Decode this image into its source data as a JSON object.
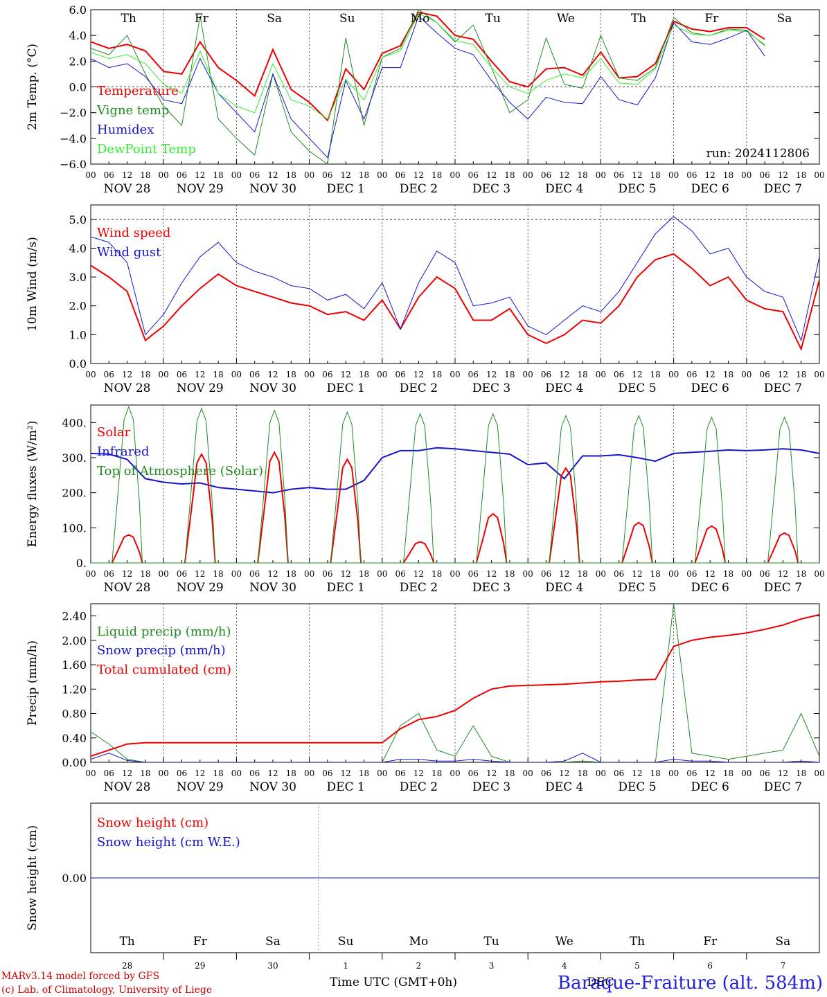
{
  "chart_data": [
    {
      "type": "line",
      "ylabel": "2m Temp. (°C)",
      "ylim": [
        -6,
        6
      ],
      "yticks": [
        "6.0",
        "4.0",
        "2.0",
        "0.0",
        "−2.0",
        "−4.0",
        "−6.0"
      ],
      "dashed_ref": 0,
      "annotation": "run: 2024112806",
      "x": [
        0,
        6,
        12,
        18,
        24,
        30,
        36,
        42,
        48,
        54,
        60,
        66,
        72,
        78,
        84,
        90,
        96,
        102,
        108,
        114,
        120,
        126,
        132,
        138,
        144,
        150,
        156,
        162,
        168,
        174,
        180,
        186,
        192,
        198,
        204,
        210,
        216,
        222,
        228,
        234,
        240
      ],
      "series": [
        {
          "name": "Temperature",
          "color": "#ee0000",
          "width": 2,
          "values": [
            3.5,
            3.0,
            3.3,
            2.8,
            1.2,
            1.0,
            3.5,
            1.5,
            0.5,
            -0.7,
            2.9,
            -0.2,
            -1.2,
            -2.6,
            1.4,
            -0.2,
            2.6,
            3.2,
            5.8,
            5.5,
            4.0,
            3.7,
            2.0,
            0.4,
            0.0,
            1.4,
            1.5,
            0.9,
            2.7,
            0.7,
            0.8,
            1.8,
            5.1,
            4.5,
            4.3,
            4.6,
            4.6,
            3.7,
            null,
            null,
            null
          ]
        },
        {
          "name": "Vigne temp",
          "color": "#228b22",
          "width": 1,
          "values": [
            3.0,
            2.5,
            4.0,
            1.0,
            -1.5,
            -3.0,
            5.5,
            -2.5,
            -4.0,
            -5.3,
            1.0,
            -3.5,
            -5.0,
            -6.0,
            3.8,
            -3.0,
            2.3,
            3.0,
            6.0,
            5.0,
            3.5,
            4.8,
            1.5,
            -2.0,
            -1.0,
            3.8,
            0.2,
            -0.1,
            4.0,
            0.7,
            0.5,
            1.5,
            5.4,
            4.2,
            4.0,
            4.5,
            4.4,
            3.2,
            null,
            null,
            null
          ]
        },
        {
          "name": "Humidex",
          "color": "#1515cc",
          "width": 1,
          "values": [
            2.2,
            1.5,
            1.8,
            0.8,
            -1.0,
            -1.3,
            2.2,
            -0.5,
            -2.0,
            -3.5,
            1.0,
            -2.5,
            -4.0,
            -5.5,
            0.5,
            -2.5,
            1.5,
            1.5,
            5.5,
            4.2,
            3.0,
            2.5,
            0.5,
            -1.2,
            -2.5,
            -0.8,
            -1.2,
            -1.3,
            0.8,
            -1.0,
            -1.4,
            0.7,
            5.0,
            3.5,
            3.3,
            3.8,
            4.4,
            2.4,
            null,
            null,
            null
          ]
        },
        {
          "name": "DewPoint Temp",
          "color": "#33ee33",
          "width": 1,
          "values": [
            2.7,
            2.2,
            2.5,
            1.8,
            0.2,
            -0.5,
            2.8,
            -0.5,
            -1.5,
            -2.0,
            1.8,
            -1.0,
            -1.5,
            -2.5,
            0.6,
            -1.0,
            2.3,
            2.8,
            5.7,
            5.0,
            3.6,
            3.3,
            1.5,
            0.0,
            -0.5,
            0.5,
            1.0,
            0.7,
            2.2,
            0.3,
            0.2,
            1.4,
            4.8,
            4.1,
            4.0,
            4.4,
            4.3,
            3.3,
            null,
            null,
            null
          ]
        }
      ]
    },
    {
      "type": "line",
      "ylabel": "10m Wind (m/s)",
      "ylim": [
        0,
        5.5
      ],
      "yticks": [
        "0.0",
        "1.0",
        "2.0",
        "3.0",
        "4.0",
        "5.0"
      ],
      "dashed_ref": 5.0,
      "x": [
        0,
        6,
        12,
        18,
        24,
        30,
        36,
        42,
        48,
        54,
        60,
        66,
        72,
        78,
        84,
        90,
        96,
        102,
        108,
        114,
        120,
        126,
        132,
        138,
        144,
        150,
        156,
        162,
        168,
        174,
        180,
        186,
        192,
        198,
        204,
        210,
        216,
        222,
        228,
        234,
        240
      ],
      "series": [
        {
          "name": "Wind speed",
          "color": "#ee0000",
          "width": 2,
          "values": [
            3.4,
            3.0,
            2.5,
            0.8,
            1.3,
            2.0,
            2.6,
            3.1,
            2.7,
            2.5,
            2.3,
            2.1,
            2.0,
            1.7,
            1.8,
            1.5,
            2.2,
            1.2,
            2.3,
            3.0,
            2.6,
            1.5,
            1.5,
            1.9,
            1.0,
            0.7,
            1.0,
            1.5,
            1.4,
            2.0,
            3.0,
            3.6,
            3.8,
            3.3,
            2.7,
            3.0,
            2.2,
            1.9,
            1.8,
            0.5,
            2.9
          ]
        },
        {
          "name": "Wind gust",
          "color": "#1515cc",
          "width": 1,
          "values": [
            4.4,
            4.2,
            3.5,
            1.0,
            1.7,
            2.8,
            3.7,
            4.2,
            3.5,
            3.2,
            3.0,
            2.7,
            2.6,
            2.2,
            2.4,
            1.9,
            2.8,
            1.2,
            2.8,
            3.9,
            3.5,
            2.0,
            2.1,
            2.3,
            1.3,
            1.0,
            1.5,
            2.0,
            1.8,
            2.5,
            3.5,
            4.5,
            5.1,
            4.6,
            3.8,
            4.0,
            3.0,
            2.5,
            2.3,
            0.8,
            3.7
          ]
        }
      ]
    },
    {
      "type": "line",
      "ylabel": "Energy fluxes (W/m²)",
      "ylim": [
        0,
        450
      ],
      "yticks": [
        "0.",
        "100.",
        "200.",
        "300.",
        "400."
      ],
      "x": [
        0,
        6,
        12,
        18,
        24,
        30,
        36,
        42,
        48,
        54,
        60,
        66,
        72,
        78,
        84,
        90,
        96,
        102,
        108,
        114,
        120,
        126,
        132,
        138,
        144,
        150,
        156,
        162,
        168,
        174,
        180,
        186,
        192,
        198,
        204,
        210,
        216,
        222,
        228,
        234,
        240
      ],
      "series": [
        {
          "name": "Infrared",
          "color": "#1515cc",
          "width": 2,
          "values": [
            312,
            310,
            295,
            240,
            230,
            225,
            228,
            215,
            210,
            205,
            200,
            210,
            215,
            210,
            210,
            235,
            300,
            320,
            320,
            328,
            325,
            320,
            315,
            310,
            280,
            285,
            240,
            305,
            305,
            308,
            300,
            290,
            312,
            315,
            318,
            322,
            320,
            322,
            325,
            322,
            312
          ]
        }
      ],
      "diurnal": [
        {
          "name": "Solar",
          "color": "#ee0000",
          "width": 2,
          "peaks": [
            80,
            310,
            315,
            295,
            60,
            140,
            270,
            115,
            105,
            85
          ]
        },
        {
          "name": "Top of Atmosphere (Solar)",
          "color": "#228b22",
          "width": 1,
          "peaks": [
            445,
            440,
            435,
            430,
            425,
            425,
            420,
            420,
            415,
            415
          ]
        }
      ]
    },
    {
      "type": "line",
      "ylabel": "Precip (mm/h)",
      "ylim": [
        0,
        2.6
      ],
      "yticks": [
        "0.00",
        "0.40",
        "0.80",
        "1.20",
        "1.60",
        "2.00",
        "2.40"
      ],
      "x": [
        0,
        6,
        12,
        18,
        24,
        30,
        36,
        42,
        48,
        54,
        60,
        66,
        72,
        78,
        84,
        90,
        96,
        102,
        108,
        114,
        120,
        126,
        132,
        138,
        144,
        150,
        156,
        162,
        168,
        174,
        180,
        186,
        192,
        198,
        204,
        210,
        216,
        222,
        228,
        234,
        240
      ],
      "series": [
        {
          "name": "Liquid precip (mm/h)",
          "color": "#228b22",
          "width": 1,
          "values": [
            0.5,
            0.3,
            0.05,
            0,
            0,
            0,
            0,
            0,
            0,
            0,
            0,
            0,
            0,
            0,
            0,
            0,
            0,
            0.6,
            0.8,
            0.2,
            0.1,
            0.6,
            0.1,
            0,
            0,
            0,
            0,
            0.02,
            0,
            0,
            0,
            0,
            2.6,
            0.15,
            0.1,
            0.05,
            0.1,
            0.15,
            0.2,
            0.8,
            0.1
          ]
        },
        {
          "name": "Snow precip (mm/h)",
          "color": "#1515cc",
          "width": 1,
          "values": [
            0.05,
            0.15,
            0.03,
            0,
            0,
            0,
            0,
            0,
            0,
            0,
            0,
            0,
            0,
            0,
            0,
            0,
            0,
            0.05,
            0.05,
            0.02,
            0.02,
            0.05,
            0.02,
            0,
            0,
            0,
            0.02,
            0.15,
            0,
            0,
            0,
            0,
            0.05,
            0.02,
            0.02,
            0,
            0,
            0,
            0,
            0.02,
            0
          ]
        },
        {
          "name": "Total cumulated (cm)",
          "color": "#ee0000",
          "width": 2,
          "values": [
            0.1,
            0.2,
            0.3,
            0.32,
            0.32,
            0.32,
            0.32,
            0.32,
            0.32,
            0.32,
            0.32,
            0.32,
            0.32,
            0.32,
            0.32,
            0.32,
            0.32,
            0.55,
            0.7,
            0.75,
            0.85,
            1.05,
            1.2,
            1.25,
            1.26,
            1.27,
            1.28,
            1.3,
            1.32,
            1.33,
            1.35,
            1.36,
            1.9,
            2.0,
            2.05,
            2.08,
            2.12,
            2.18,
            2.25,
            2.35,
            2.42
          ]
        }
      ]
    },
    {
      "type": "line",
      "ylabel": "Snow height (cm)",
      "ylim": [
        -1,
        1
      ],
      "yticks": [
        "0.00"
      ],
      "x": [
        0,
        240
      ],
      "series": [
        {
          "name": "Snow height (cm)",
          "color": "#ee0000",
          "width": 1,
          "values": [
            0,
            0
          ]
        },
        {
          "name": "Snow height (cm W.E.)",
          "color": "#1515cc",
          "width": 1,
          "values": [
            0,
            0
          ]
        }
      ]
    }
  ],
  "time_axis": {
    "hour_ticks": [
      "00",
      "06",
      "12",
      "18"
    ],
    "final_tick": "00",
    "date_labels": [
      "NOV 28",
      "NOV 29",
      "NOV 30",
      "DEC  1",
      "DEC  2",
      "DEC  3",
      "DEC  4",
      "DEC  5",
      "DEC  6",
      "DEC  7"
    ],
    "weekdays": [
      "Th",
      "Fr",
      "Sa",
      "Su",
      "Mo",
      "Tu",
      "We",
      "Th",
      "Fr",
      "Sa"
    ],
    "weekday_colors": [
      "#000000",
      "#000000",
      "#ee0000",
      "#ee0000",
      "#000000",
      "#000000",
      "#000000",
      "#000000",
      "#000000",
      "#ee0000"
    ],
    "day_numbers": [
      "28",
      "29",
      "30",
      "1",
      "2",
      "3",
      "4",
      "5",
      "6",
      "7"
    ],
    "month_label": "DEC",
    "xlabel": "Time UTC (GMT+0h)"
  },
  "footer": {
    "line1": "MARv3.14 model forced by GFS",
    "line2": "(c) Lab. of Climatology, University of Liege",
    "site": "Baraque-Fraiture (alt. 584m)"
  }
}
